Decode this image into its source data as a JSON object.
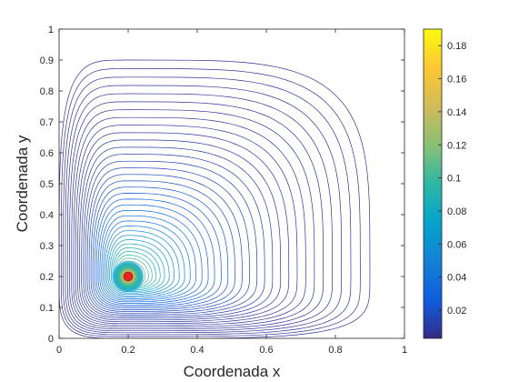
{
  "chart_data": {
    "type": "contour",
    "title": "",
    "xlabel": "Coordenada x",
    "ylabel": "Coordenada y",
    "xlim": [
      0,
      1
    ],
    "ylim": [
      0,
      1
    ],
    "x_ticks": [
      "0",
      "0.2",
      "0.4",
      "0.6",
      "0.8",
      "1"
    ],
    "y_ticks": [
      "0",
      "0.1",
      "0.2",
      "0.3",
      "0.4",
      "0.5",
      "0.6",
      "0.7",
      "0.8",
      "0.9",
      "1"
    ],
    "grid": false,
    "source_point": {
      "x": 0.2,
      "y": 0.2,
      "color": "#e8231f"
    },
    "contour_levels": {
      "count": 40,
      "outermost_extent": {
        "x_min": 0.0,
        "x_max": 0.9,
        "y_min": 0.0,
        "y_max": 0.9
      }
    },
    "colorbar": {
      "position": "right",
      "colormap": "parula",
      "range": [
        0.003,
        0.19
      ],
      "ticks": [
        "0.02",
        "0.04",
        "0.06",
        "0.08",
        "0.1",
        "0.12",
        "0.14",
        "0.16",
        "0.18"
      ]
    }
  }
}
